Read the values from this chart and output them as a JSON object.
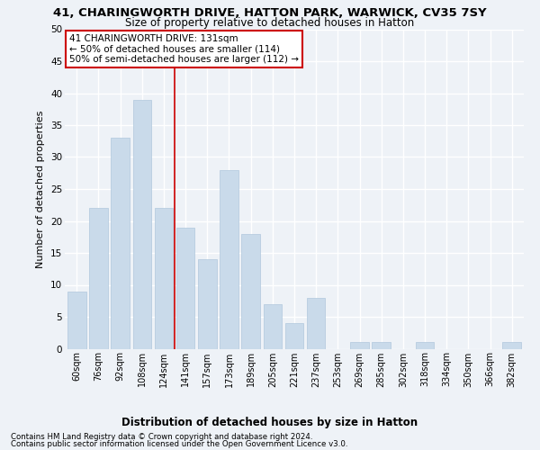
{
  "title": "41, CHARINGWORTH DRIVE, HATTON PARK, WARWICK, CV35 7SY",
  "subtitle": "Size of property relative to detached houses in Hatton",
  "xlabel": "Distribution of detached houses by size in Hatton",
  "ylabel": "Number of detached properties",
  "categories": [
    "60sqm",
    "76sqm",
    "92sqm",
    "108sqm",
    "124sqm",
    "141sqm",
    "157sqm",
    "173sqm",
    "189sqm",
    "205sqm",
    "221sqm",
    "237sqm",
    "253sqm",
    "269sqm",
    "285sqm",
    "302sqm",
    "318sqm",
    "334sqm",
    "350sqm",
    "366sqm",
    "382sqm"
  ],
  "values": [
    9,
    22,
    33,
    39,
    22,
    19,
    14,
    28,
    18,
    7,
    4,
    8,
    0,
    1,
    1,
    0,
    1,
    0,
    0,
    0,
    1
  ],
  "bar_color": "#c9daea",
  "bar_edge_color": "#b0c8dc",
  "vline_index": 4.5,
  "annotation_line1": "41 CHARINGWORTH DRIVE: 131sqm",
  "annotation_line2": "← 50% of detached houses are smaller (114)",
  "annotation_line3": "50% of semi-detached houses are larger (112) →",
  "annotation_box_color": "#ffffff",
  "annotation_box_edgecolor": "#cc0000",
  "vline_color": "#cc0000",
  "background_color": "#eef2f7",
  "grid_color": "#ffffff",
  "footer_line1": "Contains HM Land Registry data © Crown copyright and database right 2024.",
  "footer_line2": "Contains public sector information licensed under the Open Government Licence v3.0.",
  "ylim": [
    0,
    50
  ],
  "yticks": [
    0,
    5,
    10,
    15,
    20,
    25,
    30,
    35,
    40,
    45,
    50
  ]
}
